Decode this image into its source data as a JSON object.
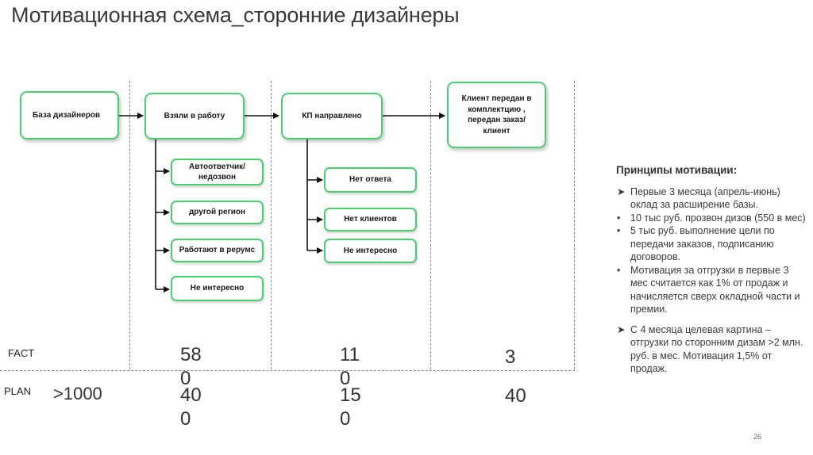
{
  "title": "Мотивационная схема_сторонние дизайнеры",
  "flow": {
    "main": [
      "База дизайнеров",
      "Взяли в работу",
      "КП направлено",
      "Клиент передан в комплектцию , передан заказ/клиент"
    ],
    "col2_subs": [
      "Автоответчик/ недозвон",
      "другой регион",
      "Работают в рерумс",
      "Не интересно"
    ],
    "col3_subs": [
      "Нет ответа",
      "Нет клиентов",
      "Не интересно"
    ]
  },
  "metrics": {
    "fact_label": "FACT",
    "plan_label": "PLAN",
    "plan_base": ">1000",
    "fact": [
      "58 0",
      "11 0",
      "3"
    ],
    "plan": [
      "40 0",
      "15 0",
      "40"
    ]
  },
  "principles": {
    "heading": "Принципы мотивации:",
    "items": [
      "Первые 3 месяца (апрель-июнь) оклад за расширение базы.",
      "10 тыс руб. прозвон дизов (550 в мес)",
      "5 тыс руб. выполнение цели по передачи заказов, подписанию договоров.",
      "Мотивация за отгрузки в первые 3 мес считается как 1% от продаж и начисляется сверх окладной части и премии.",
      "С 4 месяца целевая картина – отгрузки по сторонним дизам >2 млн. руб. в мес. Мотивация 1,5% от продаж."
    ]
  },
  "page_number": "26"
}
